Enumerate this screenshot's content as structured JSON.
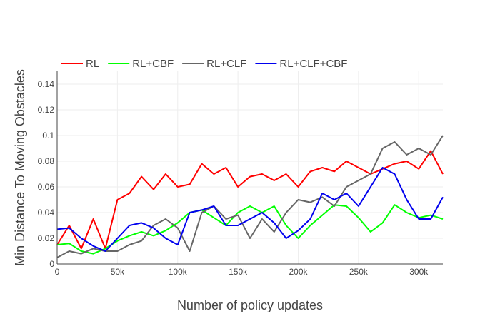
{
  "chart_data": {
    "type": "line",
    "title": "",
    "xlabel": "Number of policy updates",
    "ylabel": "Min Distance To Moving Obstacles",
    "xlim": [
      0,
      320000
    ],
    "ylim": [
      0,
      0.15
    ],
    "x_ticks": [
      0,
      50000,
      100000,
      150000,
      200000,
      250000,
      300000
    ],
    "x_tick_labels": [
      "0",
      "50k",
      "100k",
      "150k",
      "200k",
      "250k",
      "300k"
    ],
    "y_ticks": [
      0,
      0.02,
      0.04,
      0.06,
      0.08,
      0.1,
      0.12,
      0.14
    ],
    "y_tick_labels": [
      "0",
      "0.02",
      "0.04",
      "0.06",
      "0.08",
      "0.1",
      "0.12",
      "0.14"
    ],
    "grid": true,
    "legend_position": "top-left",
    "x": [
      0,
      10000,
      20000,
      30000,
      40000,
      50000,
      60000,
      70000,
      80000,
      90000,
      100000,
      110000,
      120000,
      130000,
      140000,
      150000,
      160000,
      170000,
      180000,
      190000,
      200000,
      210000,
      220000,
      230000,
      240000,
      250000,
      260000,
      270000,
      280000,
      290000,
      300000,
      310000,
      320000
    ],
    "series": [
      {
        "name": "RL",
        "color": "#ff0000",
        "values": [
          0.015,
          0.03,
          0.012,
          0.035,
          0.012,
          0.05,
          0.055,
          0.068,
          0.058,
          0.07,
          0.06,
          0.062,
          0.078,
          0.07,
          0.075,
          0.06,
          0.068,
          0.07,
          0.065,
          0.07,
          0.06,
          0.072,
          0.075,
          0.072,
          0.08,
          0.075,
          0.07,
          0.074,
          0.078,
          0.08,
          0.074,
          0.088,
          0.07
        ]
      },
      {
        "name": "RL+CBF",
        "color": "#00ff00",
        "values": [
          0.015,
          0.016,
          0.01,
          0.008,
          0.012,
          0.018,
          0.022,
          0.025,
          0.022,
          0.026,
          0.032,
          0.04,
          0.042,
          0.036,
          0.03,
          0.04,
          0.045,
          0.04,
          0.045,
          0.03,
          0.02,
          0.03,
          0.038,
          0.046,
          0.045,
          0.036,
          0.025,
          0.032,
          0.046,
          0.04,
          0.036,
          0.038,
          0.035
        ]
      },
      {
        "name": "RL+CLF",
        "color": "#666666",
        "values": [
          0.005,
          0.01,
          0.008,
          0.012,
          0.01,
          0.01,
          0.015,
          0.018,
          0.03,
          0.035,
          0.028,
          0.01,
          0.04,
          0.045,
          0.035,
          0.038,
          0.02,
          0.035,
          0.025,
          0.04,
          0.05,
          0.048,
          0.052,
          0.045,
          0.06,
          0.065,
          0.07,
          0.09,
          0.095,
          0.085,
          0.09,
          0.085,
          0.1
        ]
      },
      {
        "name": "RL+CLF+CBF",
        "color": "#0000ee",
        "values": [
          0.027,
          0.028,
          0.02,
          0.014,
          0.01,
          0.02,
          0.03,
          0.032,
          0.028,
          0.02,
          0.015,
          0.04,
          0.042,
          0.045,
          0.03,
          0.03,
          0.035,
          0.04,
          0.032,
          0.02,
          0.026,
          0.035,
          0.055,
          0.05,
          0.055,
          0.045,
          0.06,
          0.075,
          0.07,
          0.05,
          0.035,
          0.035,
          0.052
        ]
      }
    ]
  }
}
